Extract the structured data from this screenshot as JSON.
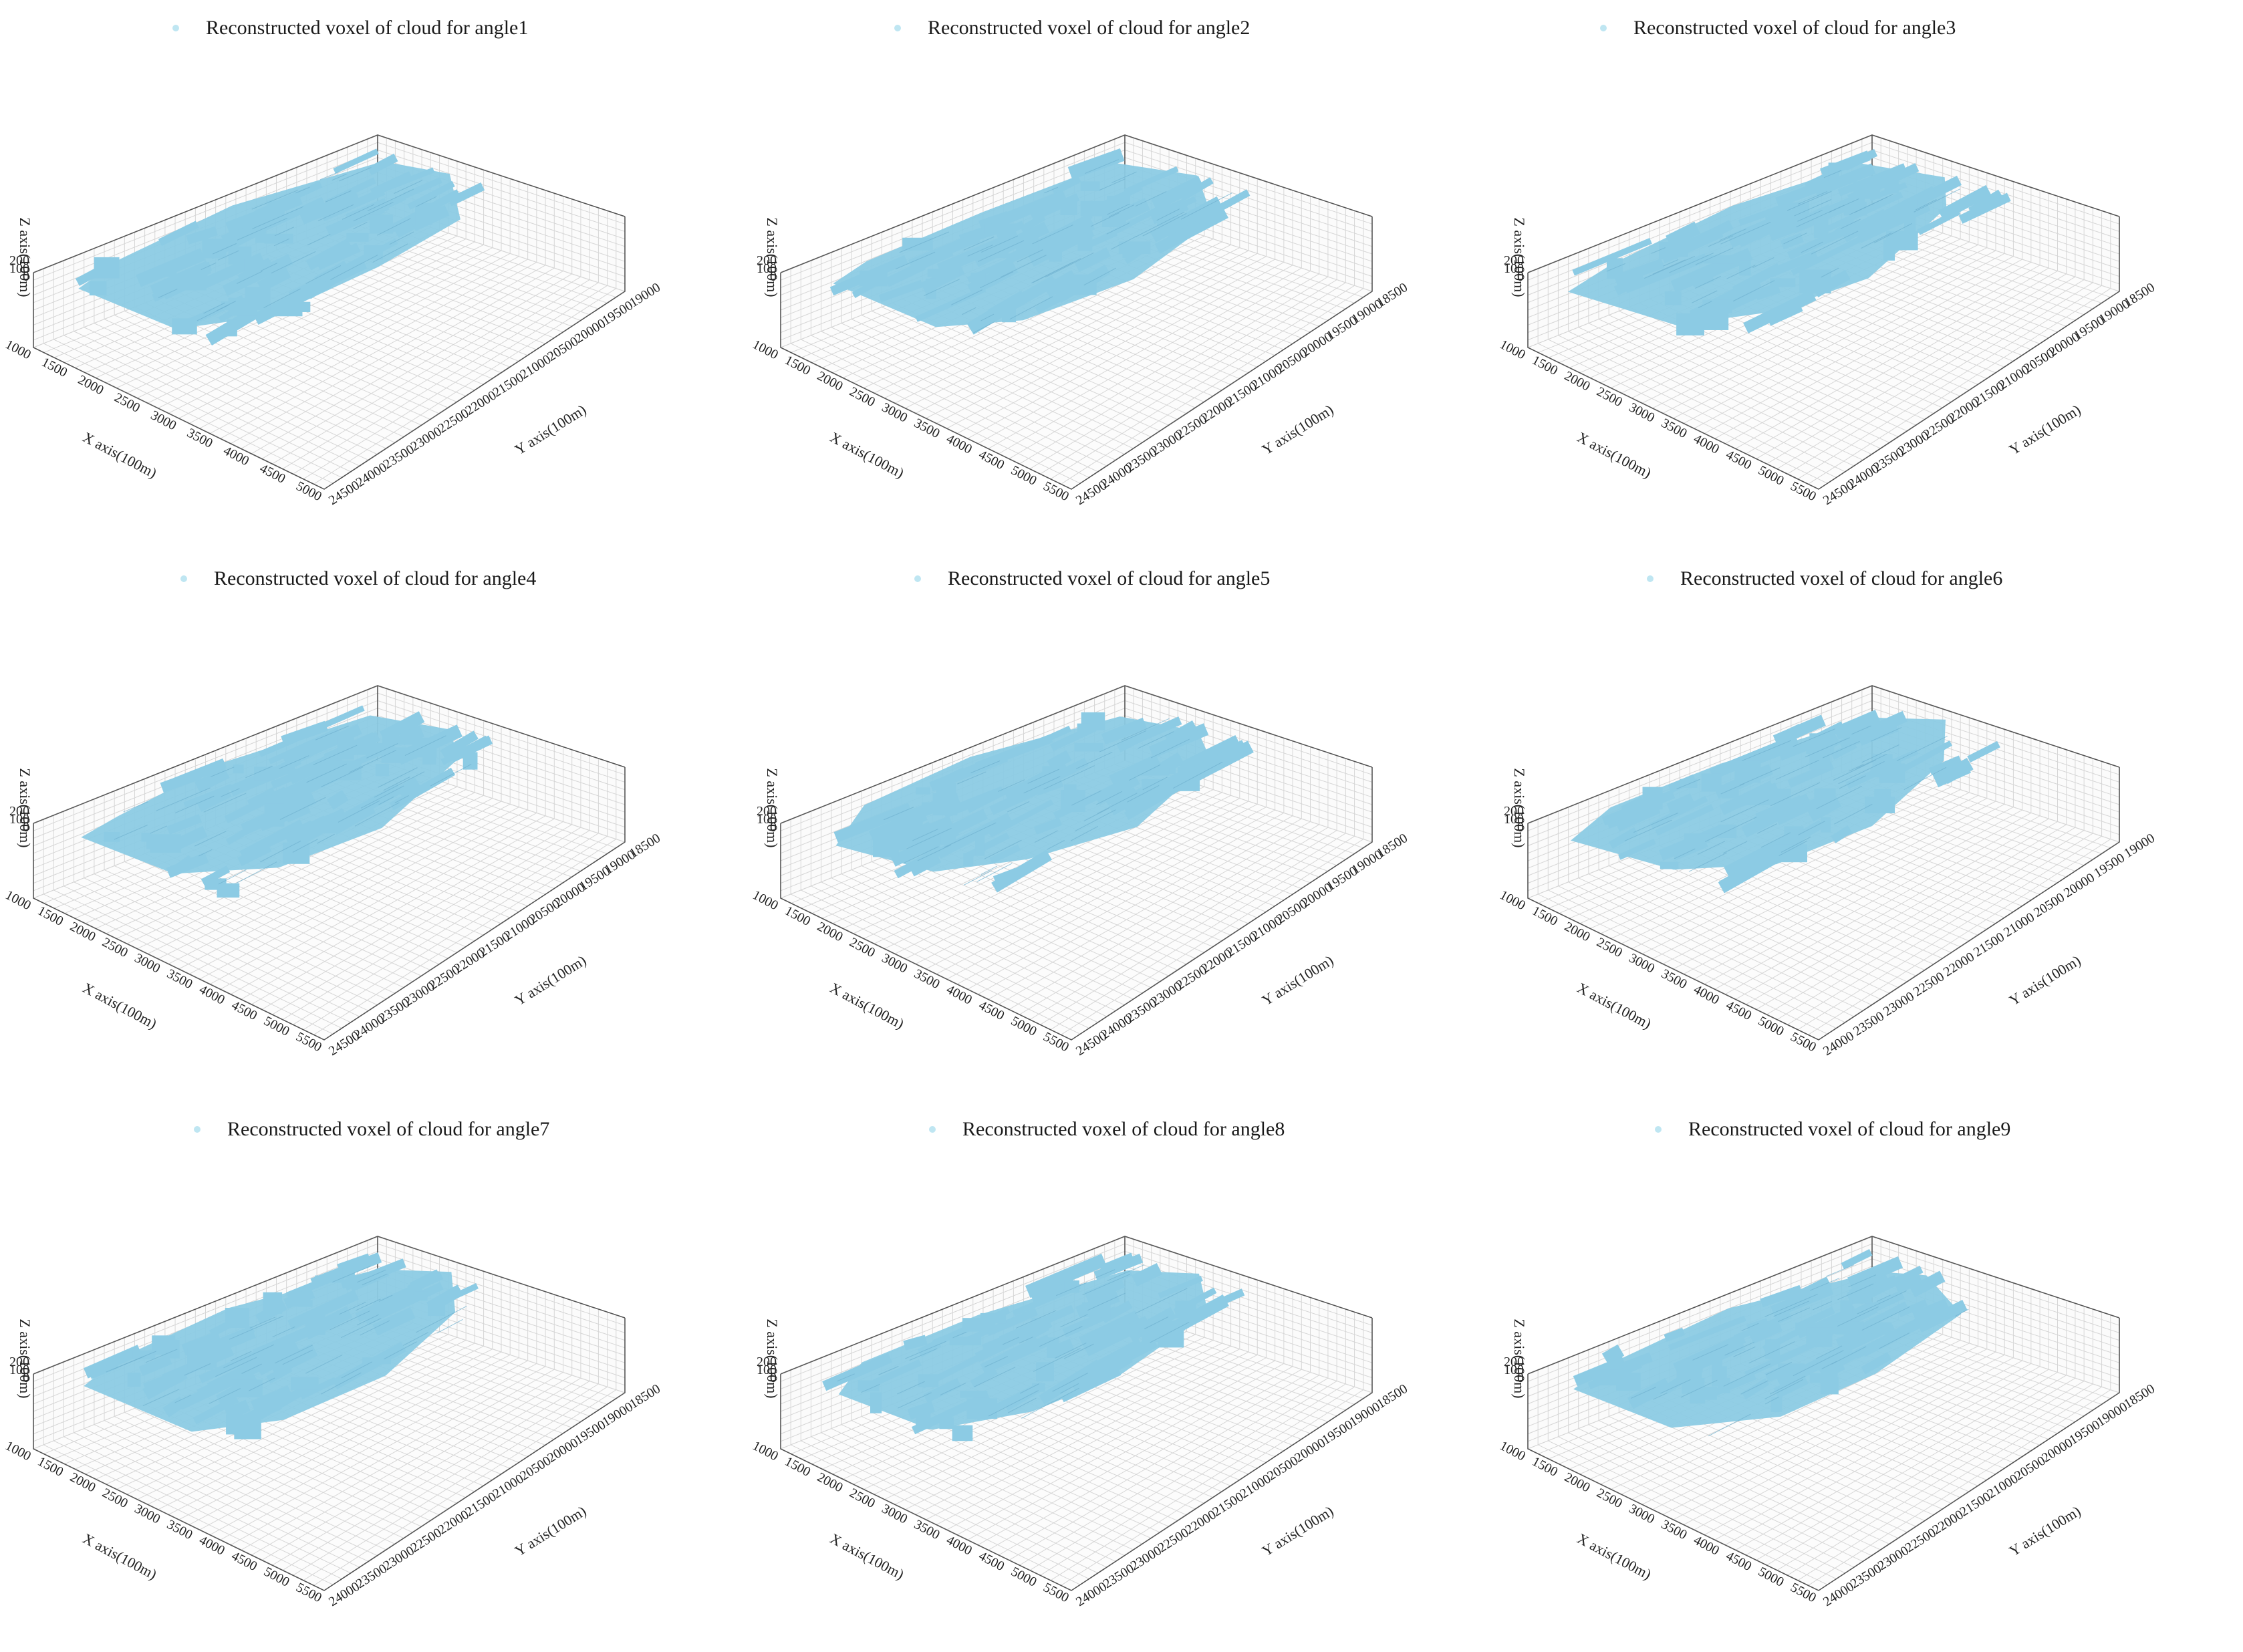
{
  "chart_data": [
    {
      "type": "scatter",
      "title": "Reconstructed voxel of cloud for angle1",
      "series": [
        {
          "name": "Reconstructed voxel of cloud for angle1"
        }
      ],
      "xlabel": "X axis(100m)",
      "ylabel": "Y axis(100m)",
      "zlabel": "Z axis(100m)",
      "x_ticks": [
        "1000",
        "1500",
        "2000",
        "2500",
        "3000",
        "3500",
        "4000",
        "4500",
        "5000"
      ],
      "y_ticks": [
        "19000",
        "19500",
        "20000",
        "20500",
        "21000",
        "21500",
        "22000",
        "22500",
        "23000",
        "23500",
        "24000",
        "24500"
      ],
      "z_ticks": [
        "0",
        "100",
        "200"
      ],
      "grid": true,
      "color": "#8ccbe4"
    },
    {
      "type": "scatter",
      "title": "Reconstructed voxel of cloud for angle2",
      "series": [
        {
          "name": "Reconstructed voxel of cloud for angle2"
        }
      ],
      "xlabel": "X axis(100m)",
      "ylabel": "Y axis(100m)",
      "zlabel": "Z axis(100m)",
      "x_ticks": [
        "1000",
        "1500",
        "2000",
        "2500",
        "3000",
        "3500",
        "4000",
        "4500",
        "5000",
        "5500"
      ],
      "y_ticks": [
        "18500",
        "19000",
        "19500",
        "20000",
        "20500",
        "21000",
        "21500",
        "22000",
        "22500",
        "23000",
        "23500",
        "24000",
        "24500"
      ],
      "z_ticks": [
        "0",
        "100",
        "200"
      ],
      "grid": true,
      "color": "#8ccbe4"
    },
    {
      "type": "scatter",
      "title": "Reconstructed voxel of cloud for angle3",
      "series": [
        {
          "name": "Reconstructed voxel of cloud for angle3"
        }
      ],
      "xlabel": "X axis(100m)",
      "ylabel": "Y axis(100m)",
      "zlabel": "Z axis(100m)",
      "x_ticks": [
        "1000",
        "1500",
        "2000",
        "2500",
        "3000",
        "3500",
        "4000",
        "4500",
        "5000",
        "5500"
      ],
      "y_ticks": [
        "18500",
        "19000",
        "19500",
        "20000",
        "20500",
        "21000",
        "21500",
        "22000",
        "22500",
        "23000",
        "23500",
        "24000",
        "24500"
      ],
      "z_ticks": [
        "0",
        "100",
        "200"
      ],
      "grid": true,
      "color": "#8ccbe4"
    },
    {
      "type": "scatter",
      "title": "Reconstructed voxel of cloud for angle4",
      "series": [
        {
          "name": "Reconstructed voxel of cloud for angle4"
        }
      ],
      "xlabel": "X axis(100m)",
      "ylabel": "Y axis(100m)",
      "zlabel": "Z axis(100m)",
      "x_ticks": [
        "1000",
        "1500",
        "2000",
        "2500",
        "3000",
        "3500",
        "4000",
        "4500",
        "5000",
        "5500"
      ],
      "y_ticks": [
        "18500",
        "19000",
        "19500",
        "20000",
        "20500",
        "21000",
        "21500",
        "22000",
        "22500",
        "23000",
        "23500",
        "24000",
        "24500"
      ],
      "z_ticks": [
        "0",
        "100",
        "200"
      ],
      "grid": true,
      "color": "#8ccbe4"
    },
    {
      "type": "scatter",
      "title": "Reconstructed voxel of cloud for angle5",
      "series": [
        {
          "name": "Reconstructed voxel of cloud for angle5"
        }
      ],
      "xlabel": "X axis(100m)",
      "ylabel": "Y axis(100m)",
      "zlabel": "Z axis(100m)",
      "x_ticks": [
        "1000",
        "1500",
        "2000",
        "2500",
        "3000",
        "3500",
        "4000",
        "4500",
        "5000",
        "5500"
      ],
      "y_ticks": [
        "18500",
        "19000",
        "19500",
        "20000",
        "20500",
        "21000",
        "21500",
        "22000",
        "22500",
        "23000",
        "23500",
        "24000",
        "24500"
      ],
      "z_ticks": [
        "0",
        "100",
        "200"
      ],
      "grid": true,
      "color": "#8ccbe4"
    },
    {
      "type": "scatter",
      "title": "Reconstructed voxel of cloud for angle6",
      "series": [
        {
          "name": "Reconstructed voxel of cloud for angle6"
        }
      ],
      "xlabel": "X axis(100m)",
      "ylabel": "Y axis(100m)",
      "zlabel": "Z axis(100m)",
      "x_ticks": [
        "1000",
        "1500",
        "2000",
        "2500",
        "3000",
        "3500",
        "4000",
        "4500",
        "5000",
        "5500"
      ],
      "y_ticks": [
        "19000",
        "19500",
        "20000",
        "20500",
        "21000",
        "21500",
        "22000",
        "22500",
        "23000",
        "23500",
        "24000"
      ],
      "z_ticks": [
        "0",
        "100",
        "200"
      ],
      "grid": true,
      "color": "#8ccbe4"
    },
    {
      "type": "scatter",
      "title": "Reconstructed voxel of cloud for angle7",
      "series": [
        {
          "name": "Reconstructed voxel of cloud for angle7"
        }
      ],
      "xlabel": "X axis(100m)",
      "ylabel": "Y axis(100m)",
      "zlabel": "Z axis(100m)",
      "x_ticks": [
        "1000",
        "1500",
        "2000",
        "2500",
        "3000",
        "3500",
        "4000",
        "4500",
        "5000",
        "5500"
      ],
      "y_ticks": [
        "18500",
        "19000",
        "19500",
        "20000",
        "20500",
        "21000",
        "21500",
        "22000",
        "22500",
        "23000",
        "23500",
        "24000"
      ],
      "z_ticks": [
        "0",
        "100",
        "200"
      ],
      "grid": true,
      "color": "#8ccbe4"
    },
    {
      "type": "scatter",
      "title": "Reconstructed voxel of cloud for angle8",
      "series": [
        {
          "name": "Reconstructed voxel of cloud for angle8"
        }
      ],
      "xlabel": "X axis(100m)",
      "ylabel": "Y axis(100m)",
      "zlabel": "Z axis(100m)",
      "x_ticks": [
        "1000",
        "1500",
        "2000",
        "2500",
        "3000",
        "3500",
        "4000",
        "4500",
        "5000",
        "5500"
      ],
      "y_ticks": [
        "18500",
        "19000",
        "19500",
        "20000",
        "20500",
        "21000",
        "21500",
        "22000",
        "22500",
        "23000",
        "23500",
        "24000"
      ],
      "z_ticks": [
        "0",
        "100",
        "200"
      ],
      "grid": true,
      "color": "#8ccbe4"
    },
    {
      "type": "scatter",
      "title": "Reconstructed voxel of cloud for angle9",
      "series": [
        {
          "name": "Reconstructed voxel of cloud for angle9"
        }
      ],
      "xlabel": "X axis(100m)",
      "ylabel": "Y axis(100m)",
      "zlabel": "Z axis(100m)",
      "x_ticks": [
        "1000",
        "1500",
        "2000",
        "2500",
        "3000",
        "3500",
        "4000",
        "4500",
        "5000",
        "5500"
      ],
      "y_ticks": [
        "18500",
        "19000",
        "19500",
        "20000",
        "20500",
        "21000",
        "21500",
        "22000",
        "22500",
        "23000",
        "23500",
        "24000"
      ],
      "z_ticks": [
        "0",
        "100",
        "200"
      ],
      "grid": true,
      "color": "#8ccbe4"
    }
  ]
}
